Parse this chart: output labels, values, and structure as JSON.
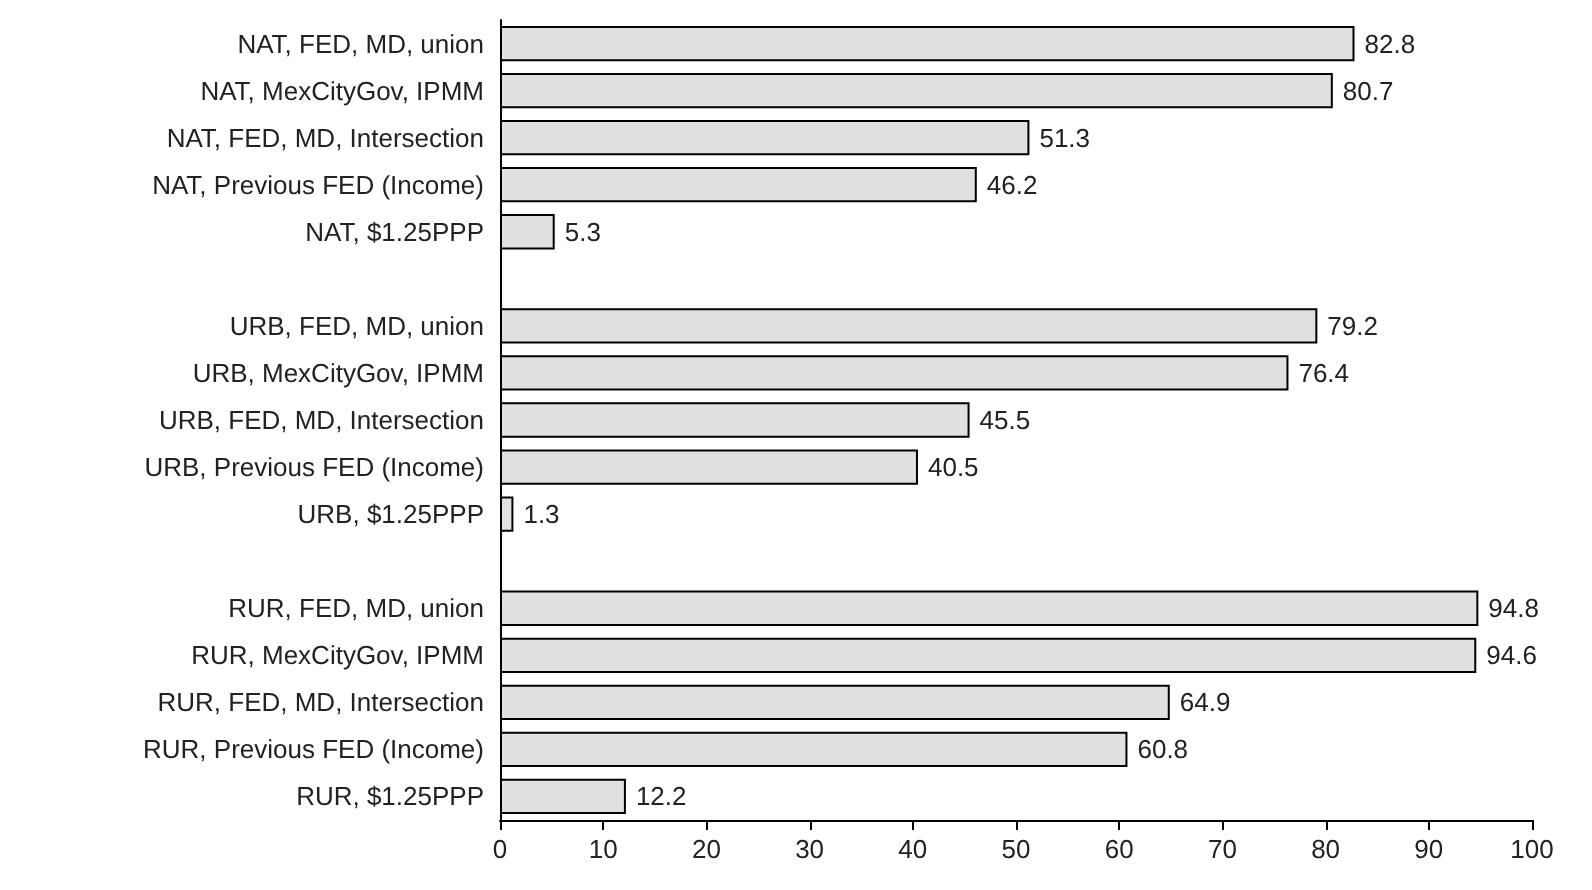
{
  "chart_data": {
    "type": "bar",
    "orientation": "horizontal",
    "categories": [
      "NAT, FED, MD, union",
      "NAT, MexCityGov, IPMM",
      "NAT, FED, MD, Intersection",
      "NAT, Previous FED (Income)",
      "NAT, $1.25PPP",
      null,
      "URB, FED, MD, union",
      "URB, MexCityGov, IPMM",
      "URB, FED, MD, Intersection",
      "URB, Previous FED (Income)",
      "URB, $1.25PPP",
      null,
      "RUR, FED, MD, union",
      "RUR, MexCityGov, IPMM",
      "RUR, FED, MD, Intersection",
      "RUR, Previous FED (Income)",
      "RUR, $1.25PPP"
    ],
    "values": [
      82.8,
      80.7,
      51.3,
      46.2,
      5.3,
      null,
      79.2,
      76.4,
      45.5,
      40.5,
      1.3,
      null,
      94.8,
      94.6,
      64.9,
      60.8,
      12.2
    ],
    "color": "#e0e0e0",
    "xlim": [
      0,
      100
    ],
    "xticks": [
      0,
      10,
      20,
      30,
      40,
      50,
      60,
      70,
      80,
      90,
      100
    ],
    "data_labels": true
  }
}
